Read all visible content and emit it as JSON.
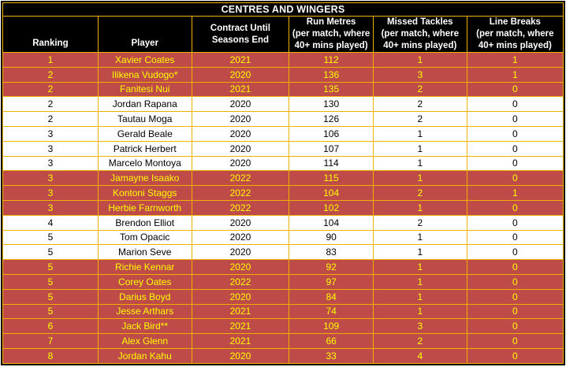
{
  "title": "CENTRES AND WINGERS",
  "colors": {
    "highlight_bg": "#BE4B48",
    "highlight_text": "#FFFF00",
    "grid_border": "#F0B000",
    "header_bg": "#000000",
    "header_text": "#FFFFFF"
  },
  "chart_data": {
    "type": "table",
    "title": "CENTRES AND WINGERS",
    "columns": [
      "Ranking",
      "Player",
      "Contract Until\nSeasons End",
      "Run Metres\n(per match, where\n40+ mins played)",
      "Missed Tackles\n(per match, where\n40+ mins played)",
      "Line Breaks\n(per match, where\n40+ mins played)"
    ],
    "rows": [
      {
        "cells": [
          "1",
          "Xavier Coates",
          "2021",
          "112",
          "1",
          "1"
        ],
        "highlighted": true
      },
      {
        "cells": [
          "2",
          "Ilikena Vudogo*",
          "2020",
          "136",
          "3",
          "1"
        ],
        "highlighted": true
      },
      {
        "cells": [
          "2",
          "Fanitesi Nui",
          "2021",
          "135",
          "2",
          "0"
        ],
        "highlighted": true
      },
      {
        "cells": [
          "2",
          "Jordan Rapana",
          "2020",
          "130",
          "2",
          "0"
        ],
        "highlighted": false
      },
      {
        "cells": [
          "2",
          "Tautau Moga",
          "2020",
          "126",
          "2",
          "0"
        ],
        "highlighted": false
      },
      {
        "cells": [
          "3",
          "Gerald Beale",
          "2020",
          "106",
          "1",
          "0"
        ],
        "highlighted": false
      },
      {
        "cells": [
          "3",
          "Patrick Herbert",
          "2020",
          "107",
          "1",
          "0"
        ],
        "highlighted": false
      },
      {
        "cells": [
          "3",
          "Marcelo Montoya",
          "2020",
          "114",
          "1",
          "0"
        ],
        "highlighted": false
      },
      {
        "cells": [
          "3",
          "Jamayne Isaako",
          "2022",
          "115",
          "1",
          "0"
        ],
        "highlighted": true
      },
      {
        "cells": [
          "3",
          "Kontoni Staggs",
          "2022",
          "104",
          "2",
          "1"
        ],
        "highlighted": true
      },
      {
        "cells": [
          "3",
          "Herbie Farnworth",
          "2022",
          "102",
          "1",
          "0"
        ],
        "highlighted": true
      },
      {
        "cells": [
          "4",
          "Brendon Elliot",
          "2020",
          "104",
          "2",
          "0"
        ],
        "highlighted": false
      },
      {
        "cells": [
          "5",
          "Tom Opacic",
          "2020",
          "90",
          "1",
          "0"
        ],
        "highlighted": false
      },
      {
        "cells": [
          "5",
          "Marion Seve",
          "2020",
          "83",
          "1",
          "0"
        ],
        "highlighted": false
      },
      {
        "cells": [
          "5",
          "Richie Kennar",
          "2020",
          "92",
          "1",
          "0"
        ],
        "highlighted": true
      },
      {
        "cells": [
          "5",
          "Corey Oates",
          "2022",
          "97",
          "1",
          "0"
        ],
        "highlighted": true
      },
      {
        "cells": [
          "5",
          "Darius Boyd",
          "2020",
          "84",
          "1",
          "0"
        ],
        "highlighted": true
      },
      {
        "cells": [
          "5",
          "Jesse Arthars",
          "2021",
          "74",
          "1",
          "0"
        ],
        "highlighted": true
      },
      {
        "cells": [
          "6",
          "Jack Bird**",
          "2021",
          "109",
          "3",
          "0"
        ],
        "highlighted": true
      },
      {
        "cells": [
          "7",
          "Alex Glenn",
          "2021",
          "66",
          "2",
          "0"
        ],
        "highlighted": true
      },
      {
        "cells": [
          "8",
          "Jordan Kahu",
          "2020",
          "33",
          "4",
          "0"
        ],
        "highlighted": true
      }
    ]
  }
}
